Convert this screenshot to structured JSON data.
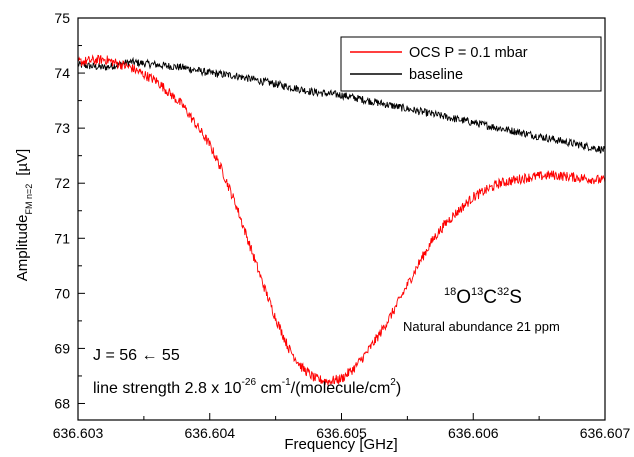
{
  "chart_data": {
    "type": "line",
    "xlabel": "Frequency [GHz]",
    "ylabel": {
      "main": "Amplitude",
      "sub": "FM n=2",
      "unit": "[µV]"
    },
    "xlim": [
      636.603,
      636.607
    ],
    "ylim": [
      67.7,
      75.0
    ],
    "x_ticks": [
      "636.603",
      "636.604",
      "636.605",
      "636.606",
      "636.607"
    ],
    "y_ticks": [
      "68",
      "69",
      "70",
      "71",
      "72",
      "73",
      "74",
      "75"
    ],
    "legend_position": "top-right",
    "series": [
      {
        "name": "OCS P = 0.1 mbar",
        "color": "#ff0000",
        "x": [
          636.603,
          636.6032,
          636.6034,
          636.6036,
          636.6038,
          636.604,
          636.6041,
          636.6042,
          636.6043,
          636.6044,
          636.6045,
          636.6046,
          636.6047,
          636.6048,
          636.6049,
          636.605,
          636.6051,
          636.6052,
          636.6053,
          636.6054,
          636.6055,
          636.6056,
          636.6057,
          636.6058,
          636.606,
          636.6062,
          636.6064,
          636.6066,
          636.6068,
          636.607
        ],
        "values": [
          74.2,
          74.25,
          74.1,
          73.85,
          73.4,
          72.7,
          72.2,
          71.6,
          70.9,
          70.2,
          69.55,
          69.0,
          68.65,
          68.45,
          68.4,
          68.45,
          68.65,
          68.95,
          69.3,
          69.7,
          70.15,
          70.6,
          71.0,
          71.3,
          71.75,
          72.0,
          72.1,
          72.15,
          72.1,
          72.05
        ]
      },
      {
        "name": "baseline",
        "color": "#000000",
        "x": [
          636.603,
          636.6032,
          636.6034,
          636.6036,
          636.6038,
          636.604,
          636.6042,
          636.6044,
          636.6046,
          636.6048,
          636.605,
          636.6052,
          636.6054,
          636.6056,
          636.6058,
          636.606,
          636.6062,
          636.6064,
          636.6066,
          636.6068,
          636.607
        ],
        "values": [
          74.15,
          74.1,
          74.2,
          74.15,
          74.1,
          74.0,
          73.95,
          73.85,
          73.75,
          73.65,
          73.6,
          73.5,
          73.4,
          73.3,
          73.2,
          73.1,
          73.0,
          72.9,
          72.8,
          72.7,
          72.6
        ]
      }
    ],
    "annotations": {
      "molecule": {
        "i1": "18",
        "a1": "O",
        "i2": "13",
        "a2": "C",
        "i3": "32",
        "a3": "S"
      },
      "abundance": "Natural abundance 21 ppm",
      "transition": "J = 56 ← 55",
      "strength": {
        "prefix": "line strength  2.8 x 10",
        "exp1": "-26",
        "mid": " cm",
        "exp2": "-1",
        "tail": "/(molecule/cm",
        "exp3": "2",
        "end": ")"
      }
    }
  }
}
